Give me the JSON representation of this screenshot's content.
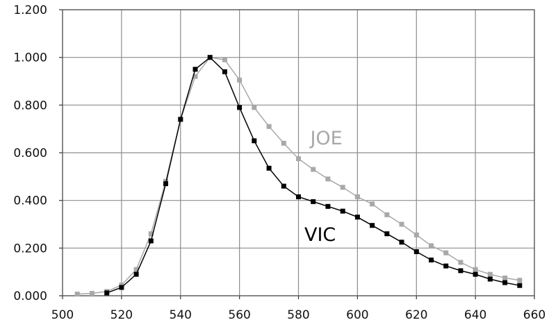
{
  "chart_data": {
    "type": "line",
    "xlim": [
      500,
      660
    ],
    "ylim": [
      0,
      1.2
    ],
    "x_ticks": [
      "500",
      "520",
      "540",
      "560",
      "580",
      "600",
      "620",
      "640",
      "660"
    ],
    "y_ticks": [
      "0.000",
      "0.200",
      "0.400",
      "0.600",
      "0.800",
      "1.000",
      "1.200"
    ],
    "grid": true,
    "legend": "inline labels",
    "series": [
      {
        "name": "JOE",
        "color": "#a8a8a8",
        "x": [
          505,
          510,
          515,
          520,
          525,
          530,
          535,
          540,
          545,
          550,
          555,
          560,
          565,
          570,
          575,
          580,
          585,
          590,
          595,
          600,
          605,
          610,
          615,
          620,
          625,
          630,
          635,
          640,
          645,
          650,
          655
        ],
        "y": [
          0.007,
          0.01,
          0.018,
          0.045,
          0.11,
          0.26,
          0.48,
          0.74,
          0.92,
          1.0,
          0.99,
          0.905,
          0.79,
          0.71,
          0.64,
          0.575,
          0.53,
          0.49,
          0.455,
          0.415,
          0.385,
          0.34,
          0.3,
          0.255,
          0.21,
          0.18,
          0.14,
          0.11,
          0.09,
          0.075,
          0.065
        ]
      },
      {
        "name": "VIC",
        "color": "#000000",
        "x": [
          515,
          520,
          525,
          530,
          535,
          540,
          545,
          550,
          555,
          560,
          565,
          570,
          575,
          580,
          585,
          590,
          595,
          600,
          605,
          610,
          615,
          620,
          625,
          630,
          635,
          640,
          645,
          650,
          655
        ],
        "y": [
          0.012,
          0.035,
          0.09,
          0.23,
          0.47,
          0.74,
          0.95,
          1.0,
          0.94,
          0.79,
          0.65,
          0.535,
          0.46,
          0.415,
          0.395,
          0.375,
          0.355,
          0.33,
          0.295,
          0.26,
          0.225,
          0.185,
          0.15,
          0.125,
          0.105,
          0.09,
          0.07,
          0.055,
          0.043
        ]
      }
    ]
  }
}
